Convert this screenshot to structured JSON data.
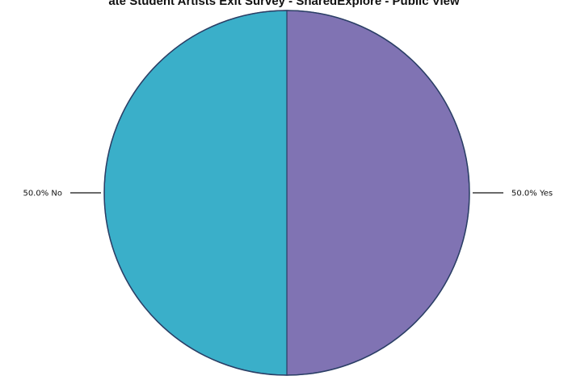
{
  "chart_data": {
    "type": "pie",
    "title": "ate Student Artists Exit Survey - SharedExplore - Public View",
    "slices": [
      {
        "label": "Yes",
        "value": 50.0,
        "display": "50.0% Yes",
        "color": "#8073b3"
      },
      {
        "label": "No",
        "value": 50.0,
        "display": "50.0% No",
        "color": "#3aafc9"
      }
    ],
    "start_angle_deg": 0,
    "direction": "clockwise",
    "legend": "none",
    "label_placement": "outside-with-leader-lines",
    "outline_color": "#2b3f66"
  }
}
